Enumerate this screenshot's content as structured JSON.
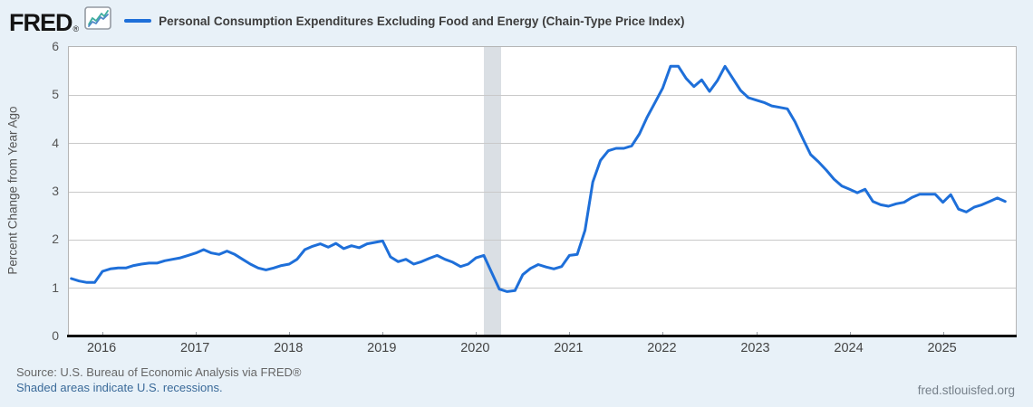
{
  "header": {
    "logo_text": "FRED",
    "logo_mark": "®",
    "legend_label": "Personal Consumption Expenditures Excluding Food and Energy (Chain-Type Price Index)"
  },
  "axes": {
    "y_title": "Percent Change from Year Ago"
  },
  "footer": {
    "source_text": "Source: U.S. Bureau of Economic Analysis via FRED®",
    "recession_note": "Shaded areas indicate U.S. recessions.",
    "site_watermark": "fred.stlouisfed.org"
  },
  "colors": {
    "page_bg": "#e8f1f8",
    "plot_bg": "#ffffff",
    "line": "#1e6fd9",
    "gridline": "#c9c9c9",
    "recession_band": "#dadfe4",
    "link": "#3a6a99",
    "axis_text": "#555555"
  },
  "chart_data": {
    "type": "line",
    "title": "Personal Consumption Expenditures Excluding Food and Energy (Chain-Type Price Index)",
    "xlabel": "",
    "ylabel": "Percent Change from Year Ago",
    "ylim": [
      0,
      6
    ],
    "yticks": [
      0,
      1,
      2,
      3,
      4,
      5,
      6
    ],
    "xlim": [
      2015.64,
      2025.78
    ],
    "xticks": [
      2016,
      2017,
      2018,
      2019,
      2020,
      2021,
      2022,
      2023,
      2024,
      2025
    ],
    "grid": true,
    "legend_position": "top",
    "recession_bands": [
      {
        "start": 2020.083,
        "end": 2020.27
      }
    ],
    "series": [
      {
        "name": "Personal Consumption Expenditures Excluding Food and Energy (Chain-Type Price Index)",
        "frequency": "monthly",
        "start": "2015-09",
        "units": "Percent Change from Year Ago",
        "values": [
          1.2,
          1.15,
          1.12,
          1.12,
          1.35,
          1.4,
          1.42,
          1.42,
          1.47,
          1.5,
          1.52,
          1.52,
          1.57,
          1.6,
          1.63,
          1.68,
          1.73,
          1.8,
          1.73,
          1.7,
          1.77,
          1.7,
          1.6,
          1.5,
          1.42,
          1.38,
          1.42,
          1.47,
          1.5,
          1.6,
          1.8,
          1.87,
          1.92,
          1.85,
          1.93,
          1.82,
          1.88,
          1.84,
          1.92,
          1.95,
          1.98,
          1.65,
          1.55,
          1.6,
          1.5,
          1.55,
          1.62,
          1.68,
          1.6,
          1.54,
          1.45,
          1.5,
          1.63,
          1.68,
          1.33,
          0.98,
          0.93,
          0.95,
          1.28,
          1.41,
          1.49,
          1.44,
          1.4,
          1.45,
          1.68,
          1.7,
          2.2,
          3.2,
          3.65,
          3.85,
          3.9,
          3.9,
          3.95,
          4.2,
          4.55,
          4.85,
          5.15,
          5.6,
          5.6,
          5.35,
          5.18,
          5.32,
          5.08,
          5.3,
          5.6,
          5.35,
          5.1,
          4.95,
          4.9,
          4.85,
          4.78,
          4.75,
          4.72,
          4.45,
          4.1,
          3.77,
          3.62,
          3.45,
          3.26,
          3.12,
          3.05,
          2.98,
          3.05,
          2.8,
          2.73,
          2.7,
          2.75,
          2.78,
          2.88,
          2.95,
          2.95,
          2.95,
          2.78,
          2.94,
          2.64,
          2.58,
          2.68,
          2.73,
          2.8,
          2.87,
          2.8
        ]
      }
    ]
  }
}
